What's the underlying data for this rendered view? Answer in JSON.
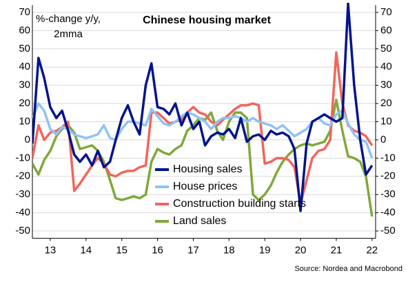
{
  "chart_data": {
    "type": "line",
    "title": "Chinese housing market",
    "ylabel": "%-change y/y, 2mma",
    "source": "Source: Nordea and Macrobond",
    "x": [
      13,
      13.17,
      13.33,
      13.5,
      13.67,
      13.83,
      14,
      14.17,
      14.33,
      14.5,
      14.67,
      14.83,
      15,
      15.17,
      15.33,
      15.5,
      15.67,
      15.83,
      16,
      16.17,
      16.33,
      16.5,
      16.67,
      16.83,
      17,
      17.17,
      17.33,
      17.5,
      17.67,
      17.83,
      18,
      18.17,
      18.33,
      18.5,
      18.67,
      18.83,
      19,
      19.17,
      19.33,
      19.5,
      19.67,
      19.83,
      20,
      20.17,
      20.33,
      20.5,
      20.67,
      20.83,
      21,
      21.17,
      21.33,
      21.5,
      21.67,
      21.83,
      22,
      22.17,
      22.33,
      22.5
    ],
    "series": [
      {
        "name": "Housing sales",
        "color": "#00148c",
        "values": [
          -2,
          45,
          34,
          18,
          12,
          16,
          5,
          -8,
          -12,
          -8,
          -14,
          -6,
          -15,
          -12,
          0,
          12,
          19,
          10,
          3,
          30,
          42,
          18,
          17,
          14,
          20,
          8,
          15,
          6,
          10,
          -3,
          2,
          4,
          3,
          6,
          1,
          12,
          -1,
          2,
          3,
          0,
          5,
          3,
          4,
          2,
          -5,
          -39,
          -2,
          10,
          12,
          14,
          12,
          10,
          12,
          75,
          30,
          0,
          -19,
          -14
        ]
      },
      {
        "name": "House prices",
        "color": "#8fc3f5",
        "values": [
          12,
          20,
          16,
          6,
          3,
          7,
          6,
          3,
          2,
          1,
          2,
          3,
          8,
          1,
          0,
          6,
          10,
          10,
          9,
          8,
          17,
          13,
          9,
          8,
          10,
          13,
          15,
          14,
          12,
          10,
          6,
          10,
          12,
          12,
          13,
          12,
          10,
          12,
          10,
          9,
          8,
          6,
          8,
          5,
          2,
          4,
          6,
          10,
          12,
          9,
          8,
          14,
          16,
          9,
          3,
          0,
          -1,
          -10
        ]
      },
      {
        "name": "Construction building starts",
        "color": "#f4645a",
        "values": [
          -10,
          8,
          0,
          4,
          5,
          7,
          10,
          -28,
          -24,
          -19,
          -14,
          -10,
          -13,
          -19,
          -20,
          -18,
          -17,
          -17,
          -15,
          -14,
          15,
          15,
          12,
          9,
          10,
          11,
          15,
          18,
          15,
          14,
          10,
          8,
          11,
          14,
          17,
          19,
          19,
          20,
          19,
          -13,
          -12,
          -10,
          -10,
          -11,
          -15,
          -35,
          -22,
          -10,
          -6,
          -5,
          0,
          48,
          20,
          8,
          5,
          4,
          2,
          -3
        ]
      },
      {
        "name": "Land sales",
        "color": "#7fa83a",
        "values": [
          -13,
          -19,
          -11,
          -6,
          2,
          6,
          8,
          4,
          -5,
          -4,
          -3,
          -6,
          -12,
          -22,
          -32,
          -33,
          -32,
          -31,
          -32,
          -30,
          -12,
          -5,
          -7,
          -8,
          -5,
          -3,
          5,
          8,
          12,
          11,
          15,
          5,
          0,
          10,
          15,
          15,
          12,
          -30,
          -33,
          -30,
          -25,
          -18,
          -12,
          -8,
          -5,
          -3,
          -2,
          -3,
          -2,
          -1,
          5,
          22,
          5,
          -9,
          -10,
          -12,
          -20,
          -42
        ]
      }
    ],
    "xlim": [
      13,
      22.6
    ],
    "xticks": [
      {
        "value": 13.5,
        "label": "13"
      },
      {
        "value": 14.5,
        "label": "14"
      },
      {
        "value": 15.5,
        "label": "15"
      },
      {
        "value": 16.5,
        "label": "16"
      },
      {
        "value": 17.5,
        "label": "17"
      },
      {
        "value": 18.5,
        "label": "18"
      },
      {
        "value": 19.5,
        "label": "19"
      },
      {
        "value": 20.5,
        "label": "20"
      },
      {
        "value": 21.5,
        "label": "21"
      },
      {
        "value": 22.5,
        "label": "22"
      }
    ],
    "ylim": [
      -54,
      74
    ],
    "yticks": [
      -50,
      -40,
      -30,
      -20,
      -10,
      0,
      10,
      20,
      30,
      40,
      50,
      60,
      70
    ],
    "y2lim": [
      -54,
      74
    ],
    "y2ticks": [
      -50,
      -40,
      -30,
      -20,
      -10,
      0,
      10,
      20,
      30,
      40,
      50,
      60,
      70
    ],
    "grid": true,
    "legend": "bottom-center"
  }
}
